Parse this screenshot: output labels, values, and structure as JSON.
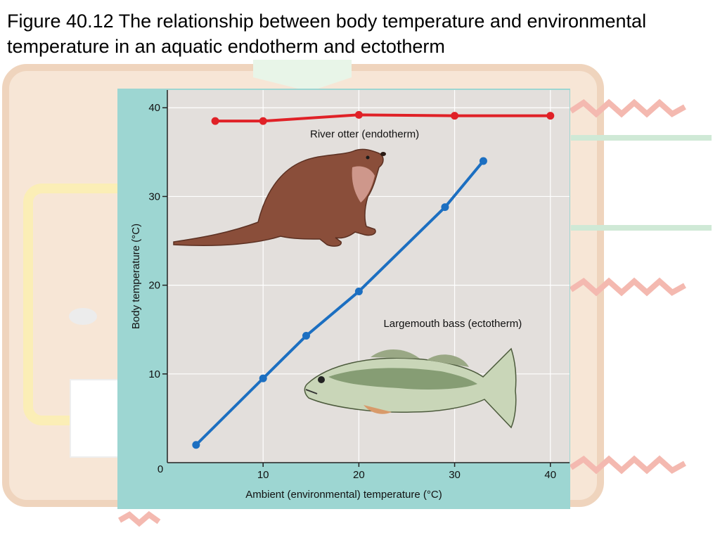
{
  "slide": {
    "title": "Figure 40.12 The relationship between body temperature and environmental temperature in an aquatic endotherm and ectotherm"
  },
  "colors": {
    "panel": "#9dd6d2",
    "plot": "#e3dfdc",
    "endotherm_line": "#e02127",
    "ectotherm_line": "#1c6fc1",
    "background_wave": "#f4b9b0",
    "background_box": "#f7e6d6"
  },
  "chart_data": {
    "type": "line",
    "xlabel": "Ambient (environmental) temperature (°C)",
    "ylabel": "Body temperature (°C)",
    "xlim": [
      0,
      42
    ],
    "ylim": [
      0,
      42
    ],
    "x_ticks": [
      10,
      20,
      30,
      40
    ],
    "y_ticks": [
      10,
      20,
      30,
      40
    ],
    "origin_label": "0",
    "grid": true,
    "series": [
      {
        "name": "River otter (endotherm)",
        "color": "#e02127",
        "x": [
          5,
          10,
          20,
          30,
          40
        ],
        "y": [
          38.5,
          38.5,
          39.2,
          39.1,
          39.1
        ]
      },
      {
        "name": "Largemouth bass (ectotherm)",
        "color": "#1c6fc1",
        "x": [
          3,
          10,
          14.5,
          20,
          29,
          33
        ],
        "y": [
          2,
          9.5,
          14.3,
          19.3,
          28.8,
          34
        ]
      }
    ],
    "illustrations": [
      "otter-illustration",
      "bass-illustration"
    ]
  }
}
